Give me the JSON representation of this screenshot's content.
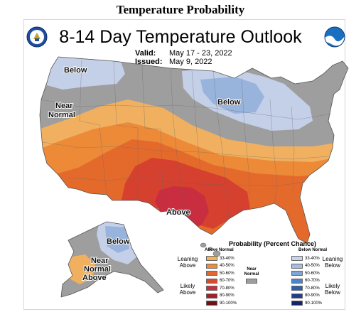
{
  "header": {
    "page_heading": "Temperature Probability"
  },
  "map": {
    "title": "8-14 Day Temperature Outlook",
    "valid_label": "Valid:",
    "valid_value": "May 17 - 23, 2022",
    "issued_label": "Issued:",
    "issued_value": "May 9, 2022",
    "regions": {
      "below_northwest": "Below",
      "below_greatlakes": "Below",
      "near_normal_1": "Near",
      "near_normal_2": "Normal",
      "above_south": "Above",
      "below_alaska": "Below",
      "near_alaska_1": "Near",
      "near_alaska_2": "Normal",
      "above_alaska": "Above"
    },
    "colors": {
      "near": "#9e9e9e",
      "above_33_40": "#f0b060",
      "above_40_50": "#ec8a38",
      "above_50_60": "#e46a2c",
      "above_60_70": "#d6402e",
      "above_70_80": "#c82d40",
      "below_33_40": "#c4cfe8",
      "below_40_50": "#98b4dc"
    }
  },
  "legend": {
    "title": "Probability (Percent Chance)",
    "above_header": "Above Normal",
    "below_header": "Below Normal",
    "leaning_above": "Leaning\nAbove",
    "likely_above": "Likely\nAbove",
    "leaning_below": "Leaning\nBelow",
    "likely_below": "Likely\nBelow",
    "near_normal": "Near\nNormal",
    "above": [
      {
        "label": "33-40%",
        "color": "#f1b45e"
      },
      {
        "label": "40-50%",
        "color": "#ec8c3a"
      },
      {
        "label": "50-60%",
        "color": "#e4672c"
      },
      {
        "label": "60-70%",
        "color": "#d94a2e"
      },
      {
        "label": "70-80%",
        "color": "#c8313c"
      },
      {
        "label": "80-90%",
        "color": "#a3202a"
      },
      {
        "label": "90-100%",
        "color": "#6e1216"
      }
    ],
    "below": [
      {
        "label": "33-40%",
        "color": "#c9d4ec"
      },
      {
        "label": "40-50%",
        "color": "#a4bde2"
      },
      {
        "label": "50-60%",
        "color": "#7ea5d8"
      },
      {
        "label": "60-70%",
        "color": "#4c86c8"
      },
      {
        "label": "70-80%",
        "color": "#2a62ad"
      },
      {
        "label": "80-90%",
        "color": "#1e3f8a"
      },
      {
        "label": "90-100%",
        "color": "#142665"
      }
    ]
  },
  "logos": {
    "left": "doc-seal-icon",
    "right": "noaa-logo-icon"
  }
}
